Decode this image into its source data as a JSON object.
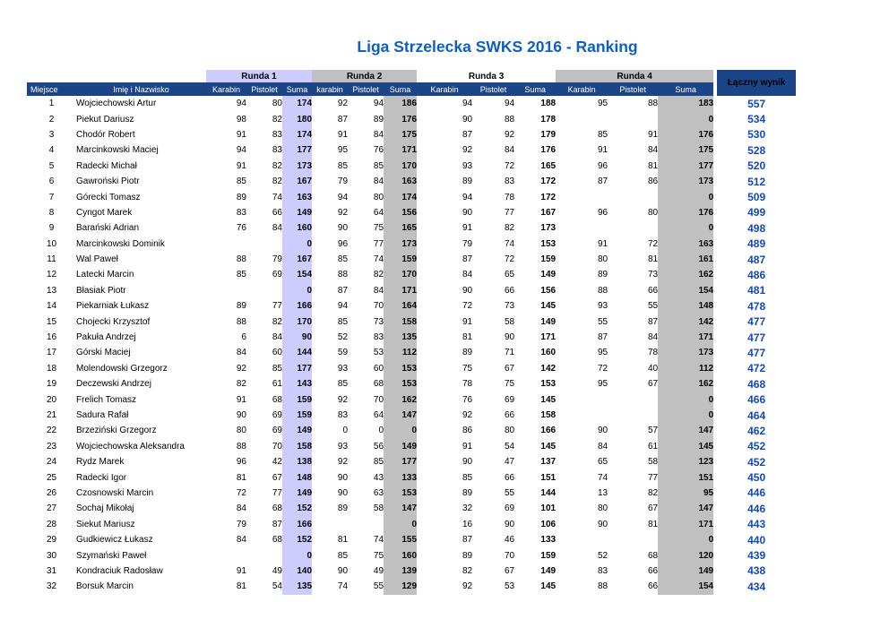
{
  "title": "Liga Strzelecka SWKS 2016 - Ranking",
  "colors": {
    "header_navy": "#1b4586",
    "round1_fill": "#ccccff",
    "round2_fill": "#c0c0c0",
    "round3_fill": "#ffffff",
    "round4_fill": "#c0c0c0",
    "title_blue": "#0d5fc2",
    "total_blue": "#1247c4"
  },
  "table": {
    "groups": [
      "Runda 1",
      "Runda 2",
      "Runda 3",
      "Runda 4"
    ],
    "headers": {
      "place": "Miejsce",
      "name": "Imię i Nazwisko"
    },
    "subheaders": [
      "Karabin",
      "Pistolet",
      "Suma",
      "karabin",
      "Pistolet",
      "Suma",
      "Karabin",
      "Pistolet",
      "Suma",
      "Karabin",
      "Pistolet",
      "Suma"
    ],
    "total_header": "Łączny wynik",
    "rows": [
      [
        1,
        "Wojciechowski Artur",
        94,
        80,
        174,
        92,
        94,
        186,
        94,
        94,
        188,
        95,
        88,
        183,
        557
      ],
      [
        2,
        "Piekut Dariusz",
        98,
        82,
        180,
        87,
        89,
        176,
        90,
        88,
        178,
        "",
        "",
        0,
        534
      ],
      [
        3,
        "Chodór Robert",
        91,
        83,
        174,
        91,
        84,
        175,
        87,
        92,
        179,
        85,
        91,
        176,
        530
      ],
      [
        4,
        "Marcinkowski Maciej",
        94,
        83,
        177,
        95,
        76,
        171,
        92,
        84,
        176,
        91,
        84,
        175,
        528
      ],
      [
        5,
        "Radecki Michał",
        91,
        82,
        173,
        85,
        85,
        170,
        93,
        72,
        165,
        96,
        81,
        177,
        520
      ],
      [
        6,
        "Gawroński Piotr",
        85,
        82,
        167,
        79,
        84,
        163,
        89,
        83,
        172,
        87,
        86,
        173,
        512
      ],
      [
        7,
        "Górecki Tomasz",
        89,
        74,
        163,
        94,
        80,
        174,
        94,
        78,
        172,
        "",
        "",
        0,
        509
      ],
      [
        8,
        "Cyngot Marek",
        83,
        66,
        149,
        92,
        64,
        156,
        90,
        77,
        167,
        96,
        80,
        176,
        499
      ],
      [
        9,
        "Barański Adrian",
        76,
        84,
        160,
        90,
        75,
        165,
        91,
        82,
        173,
        "",
        "",
        0,
        498
      ],
      [
        10,
        "Marcinkowski Dominik",
        "",
        "",
        0,
        96,
        77,
        173,
        79,
        74,
        153,
        91,
        72,
        163,
        489
      ],
      [
        11,
        "Wal Paweł",
        88,
        79,
        167,
        85,
        74,
        159,
        87,
        72,
        159,
        80,
        81,
        161,
        487
      ],
      [
        12,
        "Latecki Marcin",
        85,
        69,
        154,
        88,
        82,
        170,
        84,
        65,
        149,
        89,
        73,
        162,
        486
      ],
      [
        13,
        "Błasiak Piotr",
        "",
        "",
        0,
        87,
        84,
        171,
        90,
        66,
        156,
        88,
        66,
        154,
        481
      ],
      [
        14,
        "Piekarniak Łukasz",
        89,
        77,
        166,
        94,
        70,
        164,
        72,
        73,
        145,
        93,
        55,
        148,
        478
      ],
      [
        15,
        "Chojecki Krzysztof",
        88,
        82,
        170,
        85,
        73,
        158,
        91,
        58,
        149,
        55,
        87,
        142,
        477
      ],
      [
        16,
        "Pakuła Andrzej",
        6,
        84,
        90,
        52,
        83,
        135,
        81,
        90,
        171,
        87,
        84,
        171,
        477
      ],
      [
        17,
        "Górski Maciej",
        84,
        60,
        144,
        59,
        53,
        112,
        89,
        71,
        160,
        95,
        78,
        173,
        477
      ],
      [
        18,
        "Molendowski Grzegorz",
        92,
        85,
        177,
        93,
        60,
        153,
        75,
        67,
        142,
        72,
        40,
        112,
        472
      ],
      [
        19,
        "Deczewski Andrzej",
        82,
        61,
        143,
        85,
        68,
        153,
        78,
        75,
        153,
        95,
        67,
        162,
        468
      ],
      [
        20,
        "Frelich Tomasz",
        91,
        68,
        159,
        92,
        70,
        162,
        76,
        69,
        145,
        "",
        "",
        0,
        466
      ],
      [
        21,
        "Sadura Rafał",
        90,
        69,
        159,
        83,
        64,
        147,
        92,
        66,
        158,
        "",
        "",
        0,
        464
      ],
      [
        22,
        "Brzeziński Grzegorz",
        80,
        69,
        149,
        0,
        0,
        0,
        86,
        80,
        166,
        90,
        57,
        147,
        462
      ],
      [
        23,
        "Wojciechowska Aleksandra",
        88,
        70,
        158,
        93,
        56,
        149,
        91,
        54,
        145,
        84,
        61,
        145,
        452
      ],
      [
        24,
        "Rydz Marek",
        96,
        42,
        138,
        92,
        85,
        177,
        90,
        47,
        137,
        65,
        58,
        123,
        452
      ],
      [
        25,
        "Radecki Igor",
        81,
        67,
        148,
        90,
        43,
        133,
        85,
        66,
        151,
        74,
        77,
        151,
        450
      ],
      [
        26,
        "Czosnowski Marcin",
        72,
        77,
        149,
        90,
        63,
        153,
        89,
        55,
        144,
        13,
        82,
        95,
        446
      ],
      [
        27,
        "Sochaj Mikołaj",
        84,
        68,
        152,
        89,
        58,
        147,
        32,
        69,
        101,
        80,
        67,
        147,
        446
      ],
      [
        28,
        "Siekut Mariusz",
        79,
        87,
        166,
        "",
        "",
        0,
        16,
        90,
        106,
        90,
        81,
        171,
        443
      ],
      [
        29,
        "Gudkiewicz Łukasz",
        84,
        68,
        152,
        81,
        74,
        155,
        87,
        46,
        133,
        "",
        "",
        0,
        440
      ],
      [
        30,
        "Szymański Paweł",
        "",
        "",
        0,
        85,
        75,
        160,
        89,
        70,
        159,
        52,
        68,
        120,
        439
      ],
      [
        31,
        "Kondraciuk Radosław",
        91,
        49,
        140,
        90,
        49,
        139,
        82,
        67,
        149,
        83,
        66,
        149,
        438
      ],
      [
        32,
        "Borsuk Marcin",
        81,
        54,
        135,
        74,
        55,
        129,
        92,
        53,
        145,
        88,
        66,
        154,
        434
      ]
    ]
  }
}
